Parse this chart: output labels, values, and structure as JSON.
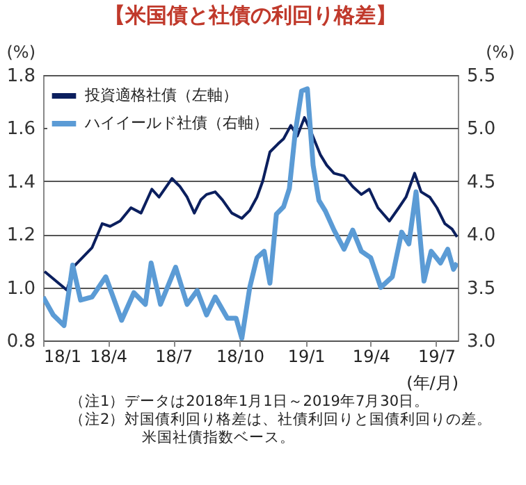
{
  "chart_data": {
    "type": "line",
    "title": "【米国債と社債の利回り格差】",
    "xlabel": "(年/月)",
    "ylabel": "(%)",
    "y2label": "(%)",
    "xlim": [
      "2018-01-01",
      "2019-07-31"
    ],
    "xticks": [
      {
        "value": "2018-01-01",
        "label": "18/1"
      },
      {
        "value": "2018-04-01",
        "label": "18/4"
      },
      {
        "value": "2018-07-01",
        "label": "18/7"
      },
      {
        "value": "2018-10-01",
        "label": "18/10"
      },
      {
        "value": "2019-01-01",
        "label": "19/1"
      },
      {
        "value": "2019-04-01",
        "label": "19/4"
      },
      {
        "value": "2019-07-01",
        "label": "19/7"
      }
    ],
    "ylim": [
      0.8,
      1.8
    ],
    "yticks": [
      0.8,
      {
        "value": 1,
        "label": "1.0"
      },
      1.2,
      1.4,
      1.6,
      1.8
    ],
    "y2lim": [
      3,
      5.5
    ],
    "y2ticks": [
      {
        "value": 3,
        "label": "3.0"
      },
      3.5,
      {
        "value": 4,
        "label": "4.0"
      },
      4.5,
      {
        "value": 5,
        "label": "5.0"
      },
      5.5
    ],
    "grid": "y",
    "legend": "top left",
    "series": [
      {
        "name": "投資適格社債（左軸）",
        "color": "#0b1f5e",
        "x": [
          "2018-01-03",
          "2018-02-03",
          "2018-02-13",
          "2018-03-10",
          "2018-03-24",
          "2018-04-04",
          "2018-04-18",
          "2018-05-03",
          "2018-05-17",
          "2018-05-27",
          "2018-06-01",
          "2018-06-11",
          "2018-06-29",
          "2018-07-10",
          "2018-07-20",
          "2018-07-30",
          "2018-08-08",
          "2018-08-16",
          "2018-08-28",
          "2018-09-07",
          "2018-09-20",
          "2018-10-04",
          "2018-10-15",
          "2018-10-25",
          "2018-11-02",
          "2018-11-12",
          "2018-11-23",
          "2018-12-01",
          "2018-12-11",
          "2018-12-20",
          "2018-12-30",
          "2019-01-09",
          "2019-01-21",
          "2019-01-30",
          "2019-02-09",
          "2019-02-23",
          "2019-03-07",
          "2019-03-19",
          "2019-03-30",
          "2019-04-11",
          "2019-04-27",
          "2019-05-10",
          "2019-05-20",
          "2019-06-01",
          "2019-06-10",
          "2019-06-22",
          "2019-07-02",
          "2019-07-13",
          "2019-07-23",
          "2019-07-30"
        ],
        "values": [
          1.06,
          0.99,
          1.08,
          1.15,
          1.24,
          1.23,
          1.25,
          1.3,
          1.28,
          1.34,
          1.37,
          1.34,
          1.41,
          1.38,
          1.34,
          1.28,
          1.33,
          1.35,
          1.36,
          1.33,
          1.28,
          1.26,
          1.29,
          1.34,
          1.4,
          1.51,
          1.54,
          1.56,
          1.61,
          1.57,
          1.64,
          1.58,
          1.5,
          1.46,
          1.43,
          1.42,
          1.38,
          1.35,
          1.37,
          1.3,
          1.25,
          1.3,
          1.34,
          1.43,
          1.36,
          1.34,
          1.3,
          1.24,
          1.22,
          1.19
        ]
      },
      {
        "name": "ハイイールド社債（右軸）",
        "color": "#5b9bd5",
        "axis": "y2",
        "x": [
          "2018-01-01",
          "2018-01-15",
          "2018-01-30",
          "2018-02-11",
          "2018-02-22",
          "2018-03-10",
          "2018-03-29",
          "2018-04-20",
          "2018-05-07",
          "2018-05-23",
          "2018-05-31",
          "2018-06-13",
          "2018-07-04",
          "2018-07-20",
          "2018-08-03",
          "2018-08-16",
          "2018-08-28",
          "2018-09-14",
          "2018-09-26",
          "2018-10-04",
          "2018-10-15",
          "2018-10-25",
          "2018-11-04",
          "2018-11-12",
          "2018-11-21",
          "2018-12-01",
          "2018-12-09",
          "2018-12-17",
          "2018-12-26",
          "2019-01-03",
          "2019-01-11",
          "2019-01-19",
          "2019-01-28",
          "2019-02-09",
          "2019-02-23",
          "2019-03-07",
          "2019-03-19",
          "2019-04-01",
          "2019-04-15",
          "2019-05-01",
          "2019-05-14",
          "2019-05-24",
          "2019-06-03",
          "2019-06-14",
          "2019-06-24",
          "2019-07-07",
          "2019-07-17",
          "2019-07-25",
          "2019-07-30"
        ],
        "values": [
          3.41,
          3.24,
          3.14,
          3.71,
          3.38,
          3.41,
          3.6,
          3.19,
          3.45,
          3.34,
          3.73,
          3.34,
          3.69,
          3.34,
          3.47,
          3.24,
          3.41,
          3.21,
          3.21,
          3.02,
          3.5,
          3.78,
          3.84,
          3.54,
          4.19,
          4.26,
          4.43,
          4.95,
          5.35,
          5.37,
          4.65,
          4.32,
          4.22,
          4.04,
          3.86,
          4.04,
          3.84,
          3.78,
          3.5,
          3.6,
          4.02,
          3.91,
          4.4,
          3.56,
          3.84,
          3.73,
          3.86,
          3.67,
          3.73
        ]
      }
    ],
    "annotations": [
      "（注1）データは2018年1月1日～2019年7月30日。",
      "（注2）対国債利回り格差は、社債利回りと国債利回りの差。",
      "米国社債指数ベース。"
    ]
  }
}
